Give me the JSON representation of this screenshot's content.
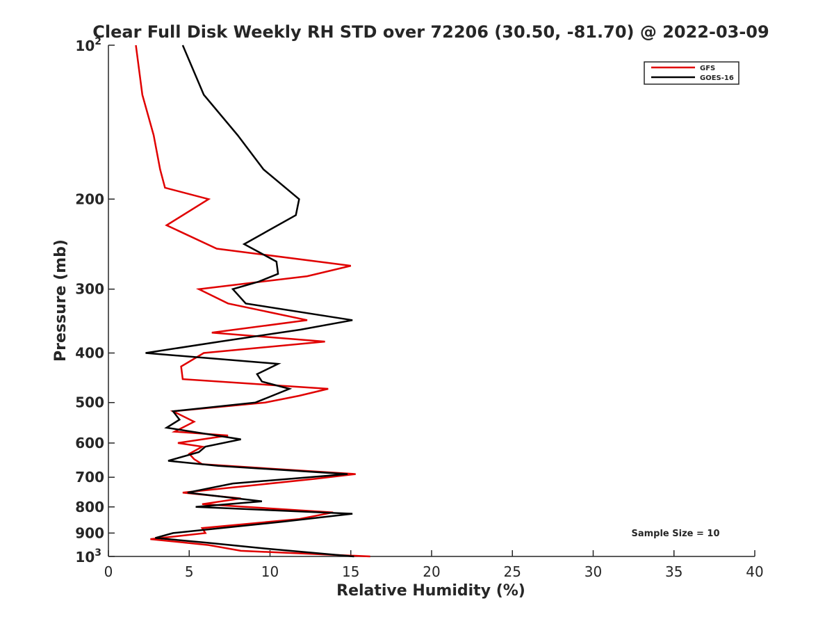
{
  "chart_data": {
    "type": "line",
    "title": "Clear Full Disk Weekly RH STD over 72206 (30.50, -81.70) @ 2022-03-09",
    "xlabel": "Relative Humidity (%)",
    "ylabel": "Pressure (mb)",
    "xlim": [
      0,
      40
    ],
    "ylim": [
      100,
      1000
    ],
    "y_scale": "log",
    "y_reversed": true,
    "grid": false,
    "legend_position": "top-right",
    "annotation": "Sample Size = 10",
    "x_ticks": [
      "0",
      "5",
      "10",
      "15",
      "20",
      "25",
      "30",
      "35",
      "40"
    ],
    "y_ticks": [
      {
        "value": 100,
        "base": "10",
        "exp": "2"
      },
      {
        "value": 200,
        "label": "200"
      },
      {
        "value": 300,
        "label": "300"
      },
      {
        "value": 400,
        "label": "400"
      },
      {
        "value": 500,
        "label": "500"
      },
      {
        "value": 600,
        "label": "600"
      },
      {
        "value": 700,
        "label": "700"
      },
      {
        "value": 800,
        "label": "800"
      },
      {
        "value": 900,
        "label": "900"
      },
      {
        "value": 1000,
        "base": "10",
        "exp": "3"
      }
    ],
    "series": [
      {
        "name": "GFS",
        "color": "#e00000",
        "points": [
          [
            1.7,
            100
          ],
          [
            2.1,
            125
          ],
          [
            2.8,
            150
          ],
          [
            3.2,
            175
          ],
          [
            3.5,
            190
          ],
          [
            6.2,
            200
          ],
          [
            3.6,
            225
          ],
          [
            6.7,
            250
          ],
          [
            15.0,
            270
          ],
          [
            12.3,
            283
          ],
          [
            5.6,
            300
          ],
          [
            7.4,
            320
          ],
          [
            12.3,
            345
          ],
          [
            6.4,
            365
          ],
          [
            13.4,
            380
          ],
          [
            5.9,
            400
          ],
          [
            4.5,
            425
          ],
          [
            4.6,
            450
          ],
          [
            13.6,
            470
          ],
          [
            11.8,
            485
          ],
          [
            9.7,
            500
          ],
          [
            4.0,
            520
          ],
          [
            5.3,
            545
          ],
          [
            4.1,
            570
          ],
          [
            7.4,
            580
          ],
          [
            4.3,
            600
          ],
          [
            5.8,
            610
          ],
          [
            5.0,
            630
          ],
          [
            5.3,
            645
          ],
          [
            5.8,
            660
          ],
          [
            15.3,
            690
          ],
          [
            12.8,
            705
          ],
          [
            4.6,
            750
          ],
          [
            8.2,
            770
          ],
          [
            5.8,
            790
          ],
          [
            13.9,
            820
          ],
          [
            11.8,
            845
          ],
          [
            5.8,
            880
          ],
          [
            6.0,
            900
          ],
          [
            2.6,
            925
          ],
          [
            6.2,
            950
          ],
          [
            8.2,
            975
          ],
          [
            16.2,
            1000
          ]
        ]
      },
      {
        "name": "GOES-16",
        "color": "#000000",
        "points": [
          [
            4.6,
            100
          ],
          [
            5.9,
            125
          ],
          [
            8.0,
            150
          ],
          [
            9.6,
            175
          ],
          [
            11.8,
            200
          ],
          [
            11.6,
            215
          ],
          [
            8.4,
            245
          ],
          [
            10.4,
            265
          ],
          [
            10.5,
            280
          ],
          [
            9.3,
            290
          ],
          [
            7.7,
            300
          ],
          [
            8.5,
            320
          ],
          [
            15.1,
            345
          ],
          [
            11.9,
            360
          ],
          [
            6.9,
            380
          ],
          [
            2.3,
            400
          ],
          [
            10.5,
            420
          ],
          [
            9.2,
            440
          ],
          [
            9.5,
            455
          ],
          [
            11.2,
            470
          ],
          [
            9.1,
            500
          ],
          [
            4.0,
            520
          ],
          [
            4.4,
            540
          ],
          [
            3.6,
            560
          ],
          [
            8.2,
            590
          ],
          [
            6.0,
            610
          ],
          [
            5.6,
            625
          ],
          [
            3.7,
            650
          ],
          [
            6.8,
            665
          ],
          [
            14.8,
            690
          ],
          [
            7.7,
            720
          ],
          [
            4.9,
            750
          ],
          [
            9.5,
            780
          ],
          [
            5.4,
            800
          ],
          [
            15.1,
            825
          ],
          [
            10.8,
            855
          ],
          [
            4.0,
            900
          ],
          [
            2.9,
            920
          ],
          [
            6.1,
            940
          ],
          [
            9.7,
            965
          ],
          [
            15.2,
            1000
          ]
        ]
      }
    ]
  }
}
